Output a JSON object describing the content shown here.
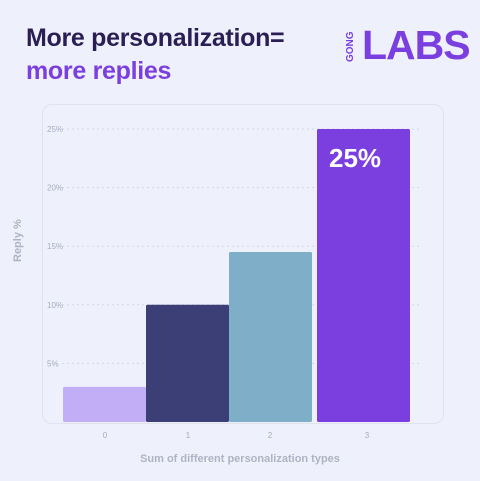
{
  "header": {
    "title_line1": "More personalization=",
    "title_line2": "more replies"
  },
  "logo": {
    "small_text": "GONG",
    "text": "LABS"
  },
  "chart_data": {
    "type": "bar",
    "categories": [
      "0",
      "1",
      "2",
      "3"
    ],
    "values": [
      3,
      10,
      14.5,
      25
    ],
    "bar_colors": [
      "#c2aef7",
      "#3c3f75",
      "#7faec8",
      "#7b3fe0"
    ],
    "data_labels": [
      "",
      "",
      "",
      "25%"
    ],
    "yticks": [
      "5%",
      "10%",
      "15%",
      "20%",
      "25%"
    ],
    "ytick_values": [
      5,
      10,
      15,
      20,
      25
    ],
    "ylim": [
      0,
      25
    ],
    "xlabel": "Sum of different personalization types",
    "ylabel": "Reply %",
    "grid": true
  }
}
